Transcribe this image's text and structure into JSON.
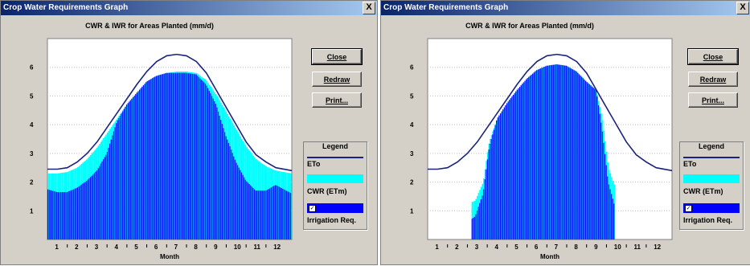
{
  "windows": [
    {
      "title": "Crop Water Requirements Graph",
      "close_glyph": "X",
      "buttons": {
        "close": "Close",
        "redraw": "Redraw",
        "print": "Print..."
      },
      "legend": {
        "title": "Legend",
        "eto": "ETo",
        "cwr": "CWR (ETm)",
        "irr": "Irrigation Req.",
        "irr_checked": "✓"
      }
    },
    {
      "title": "Crop Water Requirements Graph",
      "close_glyph": "X",
      "buttons": {
        "close": "Close",
        "redraw": "Redraw",
        "print": "Print..."
      },
      "legend": {
        "title": "Legend",
        "eto": "ETo",
        "cwr": "CWR (ETm)",
        "irr": "Irrigation Req.",
        "irr_checked": "✓"
      }
    }
  ],
  "colors": {
    "eto": "#1a237e",
    "cwr": "#00ffff",
    "irr": "#0000ff",
    "grid": "#c0c0c0"
  },
  "chart_data": [
    {
      "type": "area",
      "title": "CWR & IWR for Areas Planted (mm/d)",
      "xlabel": "Month",
      "ylabel": "",
      "categories": [
        "1",
        "2",
        "3",
        "4",
        "5",
        "6",
        "7",
        "8",
        "9",
        "10",
        "11",
        "12"
      ],
      "yticks": [
        1,
        2,
        3,
        4,
        5,
        6
      ],
      "ylim": [
        0,
        7
      ],
      "xlim": [
        0.5,
        12.8
      ],
      "series": [
        {
          "name": "ETo",
          "type": "line",
          "x": [
            0.5,
            1,
            1.5,
            2,
            2.5,
            3,
            3.5,
            4,
            4.5,
            5,
            5.5,
            6,
            6.5,
            7,
            7.5,
            8,
            8.5,
            9,
            9.5,
            10,
            10.5,
            11,
            11.5,
            12,
            12.8
          ],
          "y": [
            2.45,
            2.45,
            2.5,
            2.7,
            3.0,
            3.4,
            3.9,
            4.4,
            4.9,
            5.4,
            5.85,
            6.2,
            6.4,
            6.45,
            6.4,
            6.2,
            5.8,
            5.2,
            4.6,
            4.0,
            3.4,
            2.95,
            2.7,
            2.5,
            2.4
          ]
        },
        {
          "name": "CWR (ETm)",
          "type": "area",
          "x": [
            0.5,
            1,
            1.5,
            2,
            2.5,
            3,
            3.5,
            4,
            4.5,
            5,
            5.5,
            6,
            6.5,
            7,
            7.5,
            8,
            8.5,
            9,
            9.5,
            10,
            10.5,
            11,
            11.5,
            12,
            12.8
          ],
          "y": [
            2.3,
            2.3,
            2.35,
            2.5,
            2.8,
            3.2,
            3.7,
            4.2,
            4.7,
            5.1,
            5.5,
            5.7,
            5.8,
            5.85,
            5.85,
            5.8,
            5.55,
            5.05,
            4.45,
            3.85,
            3.25,
            2.8,
            2.55,
            2.4,
            2.3
          ]
        },
        {
          "name": "Irrigation Req.",
          "type": "area",
          "x": [
            0.5,
            1,
            1.5,
            2,
            2.5,
            3,
            3.5,
            4,
            4.5,
            5,
            5.5,
            6,
            6.5,
            7,
            7.5,
            8,
            8.5,
            9,
            9.5,
            10,
            10.5,
            11,
            11.5,
            12,
            12.8
          ],
          "y": [
            1.75,
            1.65,
            1.65,
            1.8,
            2.05,
            2.4,
            3.0,
            4.1,
            4.7,
            5.1,
            5.5,
            5.7,
            5.8,
            5.8,
            5.8,
            5.75,
            5.4,
            4.7,
            3.6,
            2.7,
            2.05,
            1.7,
            1.7,
            1.9,
            1.6
          ]
        }
      ]
    },
    {
      "type": "area",
      "title": "CWR & IWR for Areas Planted (mm/d)",
      "xlabel": "Month",
      "ylabel": "",
      "categories": [
        "1",
        "2",
        "3",
        "4",
        "5",
        "6",
        "7",
        "8",
        "9",
        "10",
        "11",
        "12"
      ],
      "yticks": [
        1,
        2,
        3,
        4,
        5,
        6
      ],
      "ylim": [
        0,
        7
      ],
      "xlim": [
        0.5,
        12.8
      ],
      "series": [
        {
          "name": "ETo",
          "type": "line",
          "x": [
            0.5,
            1,
            1.5,
            2,
            2.5,
            3,
            3.5,
            4,
            4.5,
            5,
            5.5,
            6,
            6.5,
            7,
            7.5,
            8,
            8.5,
            9,
            9.5,
            10,
            10.5,
            11,
            11.5,
            12,
            12.8
          ],
          "y": [
            2.45,
            2.45,
            2.5,
            2.7,
            3.0,
            3.4,
            3.9,
            4.4,
            4.9,
            5.4,
            5.85,
            6.2,
            6.4,
            6.45,
            6.4,
            6.2,
            5.8,
            5.2,
            4.6,
            4.0,
            3.4,
            2.95,
            2.7,
            2.5,
            2.4
          ]
        },
        {
          "name": "CWR (ETm)",
          "type": "area",
          "x": [
            2.7,
            2.9,
            3.3,
            3.6,
            4,
            4.5,
            5,
            5.5,
            6,
            6.5,
            7,
            7.5,
            8,
            8.5,
            9,
            9.3,
            9.6,
            9.95
          ],
          "y": [
            1.3,
            1.35,
            2.0,
            3.4,
            4.2,
            4.75,
            5.2,
            5.6,
            5.9,
            6.05,
            6.1,
            6.05,
            5.85,
            5.5,
            5.2,
            4.2,
            2.5,
            1.8
          ]
        },
        {
          "name": "Irrigation Req.",
          "type": "area",
          "x": [
            2.7,
            2.9,
            3.3,
            3.6,
            4,
            4.5,
            5,
            5.5,
            6,
            6.5,
            7,
            7.5,
            8,
            8.5,
            9,
            9.3,
            9.6,
            9.95
          ],
          "y": [
            0.7,
            0.8,
            1.6,
            3.2,
            4.2,
            4.75,
            5.2,
            5.6,
            5.9,
            6.05,
            6.1,
            6.05,
            5.85,
            5.5,
            5.2,
            3.8,
            2.0,
            1.1
          ]
        }
      ]
    }
  ]
}
